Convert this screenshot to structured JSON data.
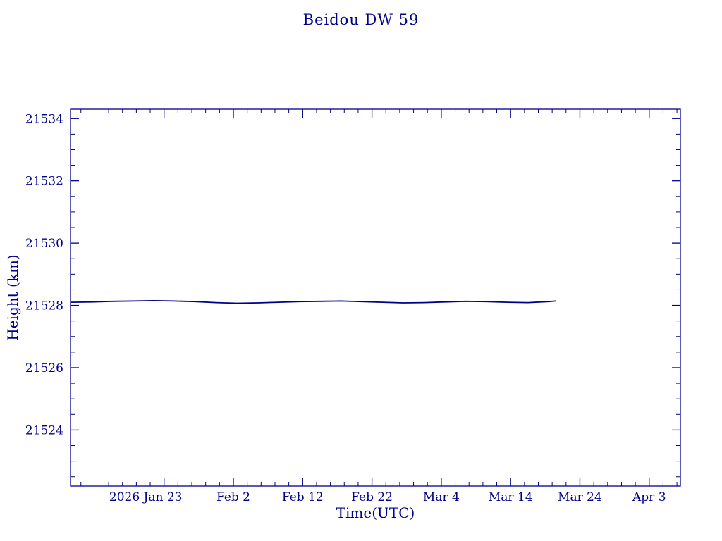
{
  "chart_data": {
    "type": "line",
    "title": "Beidou DW 59",
    "xlabel": "Time(UTC)",
    "ylabel": "Height (km)",
    "color": "#00008b",
    "grid": false,
    "legend_position": "none",
    "ylim": [
      21522.2,
      21534.3
    ],
    "yticks": [
      21524,
      21526,
      21528,
      21530,
      21532,
      21534
    ],
    "y_minor_step": 0.5,
    "xlim_days": [
      0,
      88
    ],
    "xticks": [
      {
        "day": 13.5,
        "label": "2026 Jan 23",
        "dx": -26
      },
      {
        "day": 23.5,
        "label": "Feb 2"
      },
      {
        "day": 33.5,
        "label": "Feb 12"
      },
      {
        "day": 43.5,
        "label": "Feb 22"
      },
      {
        "day": 53.5,
        "label": "Mar 4"
      },
      {
        "day": 63.5,
        "label": "Mar 14"
      },
      {
        "day": 73.5,
        "label": "Mar 24"
      },
      {
        "day": 83.5,
        "label": "Apr 3"
      }
    ],
    "x_minor_step_days": 2,
    "series": [
      {
        "name": "Beidou DW 59 height",
        "x_days": [
          0,
          3,
          6,
          9,
          12,
          15,
          18,
          21,
          24,
          27,
          30,
          33,
          36,
          39,
          42,
          45,
          48,
          51,
          54,
          57,
          60,
          63,
          66,
          69,
          70
        ],
        "values": [
          21528.1,
          21528.11,
          21528.13,
          21528.14,
          21528.15,
          21528.14,
          21528.12,
          21528.09,
          21528.07,
          21528.08,
          21528.1,
          21528.12,
          21528.13,
          21528.14,
          21528.12,
          21528.1,
          21528.08,
          21528.09,
          21528.11,
          21528.13,
          21528.12,
          21528.1,
          21528.09,
          21528.12,
          21528.14
        ]
      }
    ]
  }
}
